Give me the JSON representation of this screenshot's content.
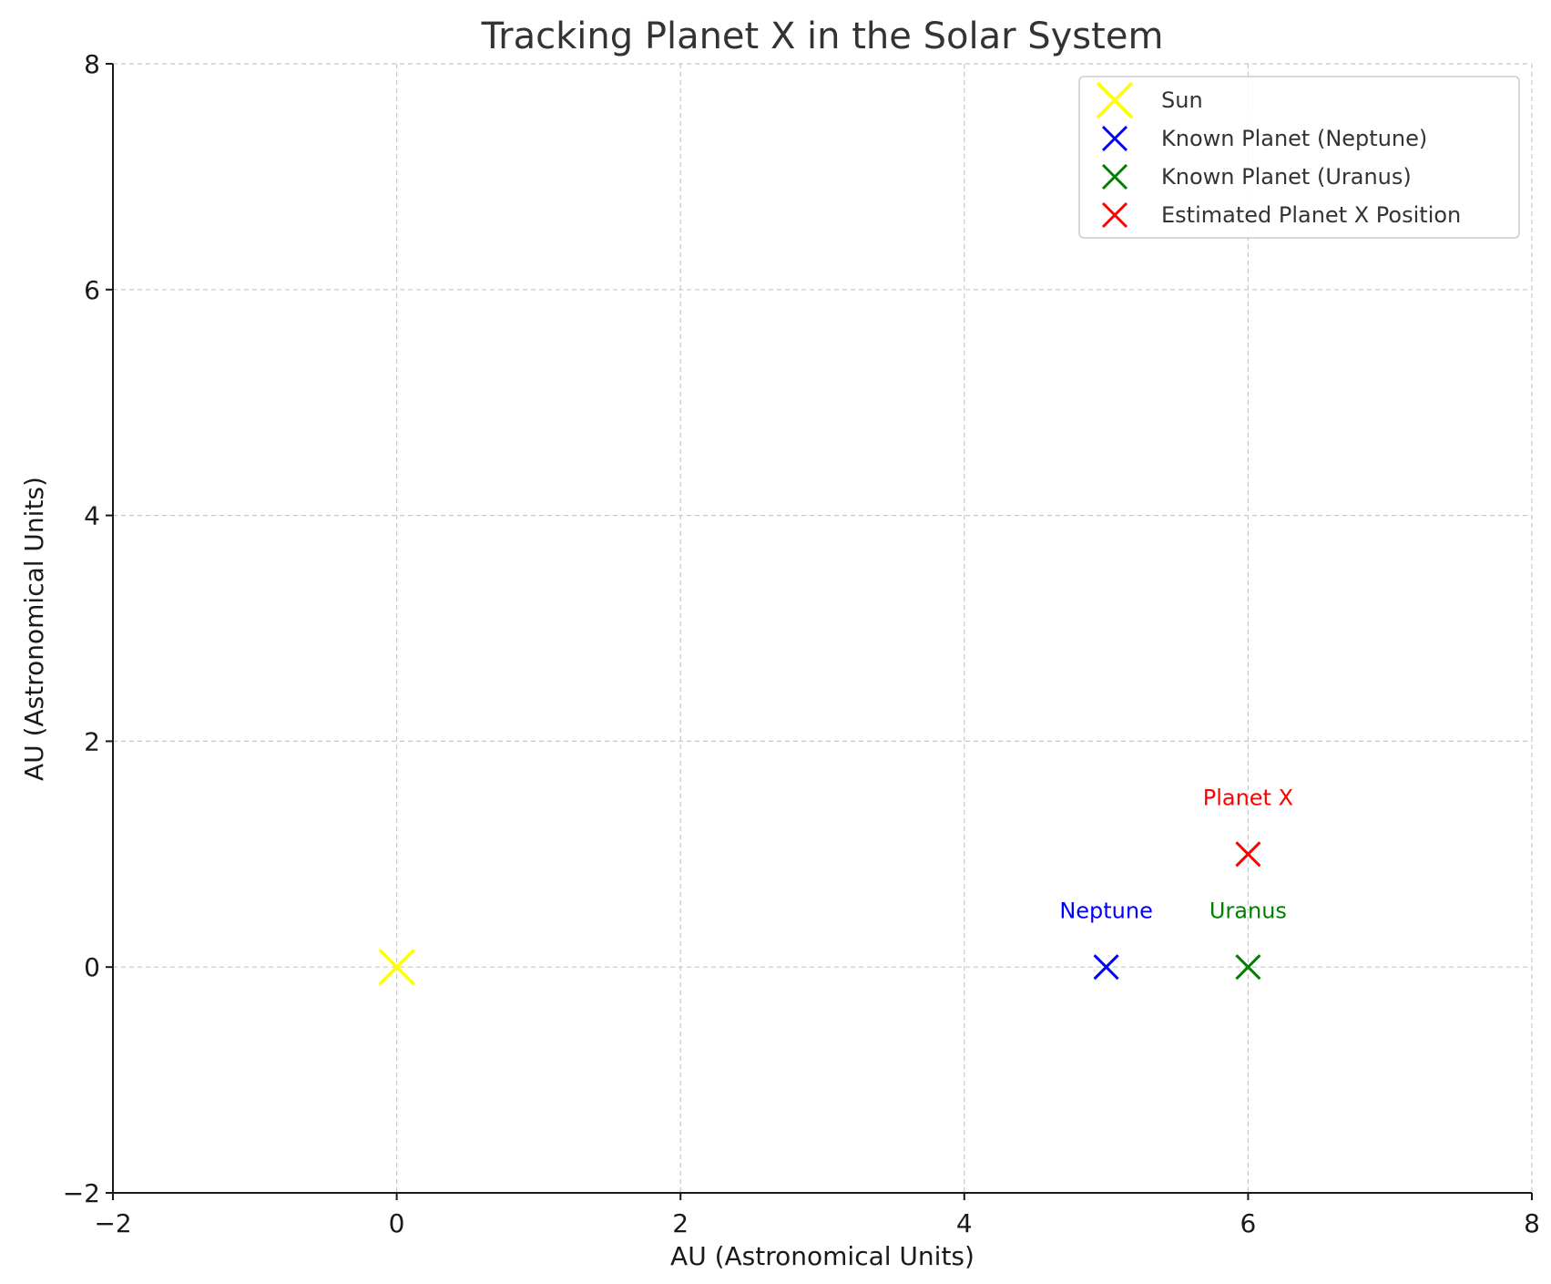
{
  "chart_data": {
    "type": "scatter",
    "title": "Tracking Planet X in the Solar System",
    "xlabel": "AU (Astronomical Units)",
    "ylabel": "AU (Astronomical Units)",
    "xlim": [
      -2,
      8
    ],
    "ylim": [
      -2,
      8
    ],
    "xticks": [
      -2,
      0,
      2,
      4,
      6,
      8
    ],
    "yticks": [
      -2,
      0,
      2,
      4,
      6,
      8
    ],
    "xtick_labels": [
      "−2",
      "0",
      "2",
      "4",
      "6",
      "8"
    ],
    "ytick_labels": [
      "−2",
      "0",
      "2",
      "4",
      "6",
      "8"
    ],
    "grid": true,
    "legend_position": "top-right",
    "series": [
      {
        "name": "Sun",
        "x": [
          0
        ],
        "y": [
          0
        ],
        "marker": "x",
        "color": "#ffff00",
        "marker_scale": "large"
      },
      {
        "name": "Known Planet (Neptune)",
        "x": [
          5
        ],
        "y": [
          0
        ],
        "marker": "x",
        "color": "#0000ff",
        "marker_scale": "normal"
      },
      {
        "name": "Known Planet (Uranus)",
        "x": [
          6
        ],
        "y": [
          0
        ],
        "marker": "x",
        "color": "#008000",
        "marker_scale": "normal"
      },
      {
        "name": "Estimated Planet X Position",
        "x": [
          6
        ],
        "y": [
          1
        ],
        "marker": "x",
        "color": "#ff0000",
        "marker_scale": "normal"
      }
    ],
    "annotations": [
      {
        "text": "Neptune",
        "x": 5,
        "y": 0.5,
        "color": "#0000ff"
      },
      {
        "text": "Uranus",
        "x": 6,
        "y": 0.5,
        "color": "#008000"
      },
      {
        "text": "Planet X",
        "x": 6,
        "y": 1.5,
        "color": "#ff0000"
      }
    ]
  }
}
